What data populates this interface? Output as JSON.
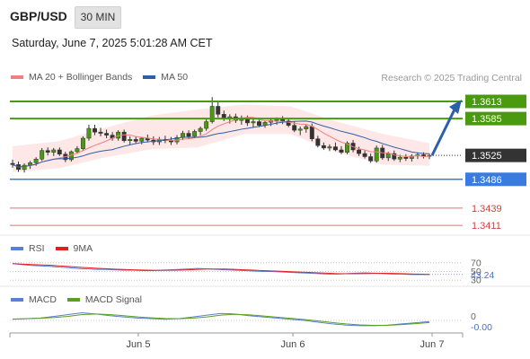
{
  "header": {
    "symbol": "GBP/USD",
    "timeframe": "30 MIN",
    "datetime": "Saturday, June 7, 2025 5:01:28 AM CET",
    "research": "Research © 2025 Trading Central"
  },
  "legend": {
    "ma20_bb": {
      "label": "MA 20 + Bollinger Bands",
      "color": "#f08080"
    },
    "ma50": {
      "label": "MA 50",
      "color": "#2d5fa8"
    }
  },
  "rsi_legend": {
    "rsi": {
      "label": "RSI",
      "color": "#5a7fd8"
    },
    "ma9": {
      "label": "9MA",
      "color": "#e02020"
    }
  },
  "macd_legend": {
    "macd": {
      "label": "MACD",
      "color": "#5a7fd8"
    },
    "signal": {
      "label": "MACD Signal",
      "color": "#5aa020"
    }
  },
  "chart_data": {
    "type": "candlestick",
    "price_ylim": [
      1.3395,
      1.3632
    ],
    "x_ticks": [
      "Jun 5",
      "Jun 6",
      "Jun 7"
    ],
    "levels": [
      {
        "label": "1.3613",
        "value": 1.3613,
        "kind": "resistance",
        "color": "#4a9a10"
      },
      {
        "label": "1.3585",
        "value": 1.3585,
        "kind": "resistance",
        "color": "#4a9a10"
      },
      {
        "label": "1.3525",
        "value": 1.3525,
        "kind": "last",
        "color": "#333333"
      },
      {
        "label": "1.3486",
        "value": 1.3486,
        "kind": "pivot",
        "color": "#3a7be0"
      },
      {
        "label": "1.3439",
        "value": 1.3439,
        "kind": "support",
        "color": "#e07070"
      },
      {
        "label": "1.3411",
        "value": 1.3411,
        "kind": "support",
        "color": "#e07070"
      }
    ],
    "target_arrow": {
      "from": 1.3525,
      "to": 1.3613,
      "color": "#2d5fa8"
    },
    "candles": [
      [
        1.3512,
        1.3518,
        1.3505,
        1.351
      ],
      [
        1.351,
        1.3515,
        1.3498,
        1.3502
      ],
      [
        1.3502,
        1.3512,
        1.3497,
        1.3509
      ],
      [
        1.3509,
        1.3516,
        1.3503,
        1.3513
      ],
      [
        1.3513,
        1.3522,
        1.3508,
        1.3519
      ],
      [
        1.3519,
        1.3537,
        1.3516,
        1.3533
      ],
      [
        1.3533,
        1.3538,
        1.3525,
        1.353
      ],
      [
        1.353,
        1.3537,
        1.3524,
        1.3534
      ],
      [
        1.3534,
        1.3538,
        1.3524,
        1.3527
      ],
      [
        1.3527,
        1.3531,
        1.3514,
        1.3518
      ],
      [
        1.3518,
        1.3533,
        1.3515,
        1.3531
      ],
      [
        1.3531,
        1.354,
        1.3528,
        1.3536
      ],
      [
        1.3536,
        1.3556,
        1.3533,
        1.3553
      ],
      [
        1.3553,
        1.3575,
        1.3549,
        1.3569
      ],
      [
        1.3569,
        1.3575,
        1.3558,
        1.3563
      ],
      [
        1.3563,
        1.357,
        1.3556,
        1.3561
      ],
      [
        1.3561,
        1.3567,
        1.3553,
        1.3558
      ],
      [
        1.3558,
        1.3563,
        1.3549,
        1.3553
      ],
      [
        1.3553,
        1.3566,
        1.3549,
        1.3563
      ],
      [
        1.3563,
        1.3567,
        1.3546,
        1.3549
      ],
      [
        1.3549,
        1.3556,
        1.3542,
        1.3551
      ],
      [
        1.3551,
        1.3556,
        1.3545,
        1.3548
      ],
      [
        1.3548,
        1.3555,
        1.3543,
        1.3553
      ],
      [
        1.3553,
        1.3559,
        1.3546,
        1.355
      ],
      [
        1.355,
        1.3556,
        1.3542,
        1.3547
      ],
      [
        1.3547,
        1.3555,
        1.3542,
        1.3551
      ],
      [
        1.3551,
        1.3557,
        1.3545,
        1.3549
      ],
      [
        1.3549,
        1.3555,
        1.3542,
        1.3547
      ],
      [
        1.3547,
        1.3558,
        1.3543,
        1.3554
      ],
      [
        1.3554,
        1.3565,
        1.355,
        1.3561
      ],
      [
        1.3561,
        1.3566,
        1.3552,
        1.3556
      ],
      [
        1.3556,
        1.3567,
        1.3553,
        1.3564
      ],
      [
        1.3564,
        1.3572,
        1.3558,
        1.3569
      ],
      [
        1.3569,
        1.3584,
        1.3565,
        1.358
      ],
      [
        1.358,
        1.362,
        1.3577,
        1.3605
      ],
      [
        1.3605,
        1.3612,
        1.3587,
        1.3592
      ],
      [
        1.3592,
        1.3598,
        1.3581,
        1.3585
      ],
      [
        1.3585,
        1.3592,
        1.3577,
        1.3588
      ],
      [
        1.3588,
        1.3593,
        1.3578,
        1.3582
      ],
      [
        1.3582,
        1.359,
        1.3575,
        1.3586
      ],
      [
        1.3586,
        1.359,
        1.3573,
        1.3578
      ],
      [
        1.3578,
        1.3584,
        1.357,
        1.358
      ],
      [
        1.358,
        1.3585,
        1.3571,
        1.3574
      ],
      [
        1.3574,
        1.3582,
        1.357,
        1.3579
      ],
      [
        1.3579,
        1.3585,
        1.3573,
        1.3582
      ],
      [
        1.3582,
        1.3587,
        1.3575,
        1.3584
      ],
      [
        1.3584,
        1.3589,
        1.3576,
        1.3581
      ],
      [
        1.3581,
        1.3586,
        1.3571,
        1.3574
      ],
      [
        1.3574,
        1.358,
        1.3563,
        1.3566
      ],
      [
        1.3566,
        1.3572,
        1.3558,
        1.3568
      ],
      [
        1.3568,
        1.3576,
        1.3562,
        1.3572
      ],
      [
        1.3572,
        1.3577,
        1.3548,
        1.3552
      ],
      [
        1.3552,
        1.3557,
        1.3538,
        1.3541
      ],
      [
        1.3541,
        1.3546,
        1.3534,
        1.3537
      ],
      [
        1.3537,
        1.3543,
        1.3532,
        1.3539
      ],
      [
        1.3539,
        1.3546,
        1.3532,
        1.3534
      ],
      [
        1.3534,
        1.354,
        1.3527,
        1.353
      ],
      [
        1.353,
        1.3548,
        1.3527,
        1.3545
      ],
      [
        1.3545,
        1.355,
        1.353,
        1.3534
      ],
      [
        1.3534,
        1.3539,
        1.3524,
        1.3528
      ],
      [
        1.3528,
        1.3533,
        1.352,
        1.3523
      ],
      [
        1.3523,
        1.3528,
        1.3513,
        1.3516
      ],
      [
        1.3516,
        1.3541,
        1.3513,
        1.3537
      ],
      [
        1.3537,
        1.3542,
        1.3518,
        1.3521
      ],
      [
        1.3521,
        1.3531,
        1.3516,
        1.3528
      ],
      [
        1.3528,
        1.3533,
        1.3516,
        1.3519
      ],
      [
        1.3519,
        1.3526,
        1.3514,
        1.3522
      ],
      [
        1.3522,
        1.3527,
        1.3516,
        1.352
      ],
      [
        1.352,
        1.3527,
        1.3515,
        1.3524
      ],
      [
        1.3524,
        1.353,
        1.3519,
        1.3526
      ],
      [
        1.3526,
        1.353,
        1.352,
        1.3524
      ],
      [
        1.3524,
        1.3528,
        1.3519,
        1.3525
      ]
    ],
    "bollinger_band": {
      "upper": [
        1.354,
        1.3548,
        1.357,
        1.359,
        1.36,
        1.3608,
        1.3605,
        1.358,
        1.356,
        1.3545
      ],
      "lower": [
        1.3498,
        1.3504,
        1.3522,
        1.3535,
        1.3538,
        1.356,
        1.356,
        1.353,
        1.351,
        1.3508
      ]
    },
    "rsi": {
      "levels": [
        70,
        50,
        30
      ],
      "last_value_label": "43.24",
      "ylim": [
        20,
        80
      ],
      "values": [
        68,
        66,
        64,
        63,
        62,
        60,
        59,
        57,
        56,
        55,
        55,
        54,
        53,
        53,
        52,
        52,
        53,
        54,
        55,
        56,
        57,
        56,
        55,
        54,
        53,
        52,
        51,
        50,
        50,
        49,
        48,
        47,
        46,
        45,
        44,
        44,
        45,
        46,
        47,
        46,
        45,
        44,
        44,
        43,
        43,
        43
      ]
    },
    "macd": {
      "zero_label": "0",
      "last_value_label": "-0.00",
      "ylim": [
        -1.0,
        1.0
      ],
      "values": [
        0.1,
        0.15,
        0.2,
        0.35,
        0.5,
        0.65,
        0.55,
        0.4,
        0.3,
        0.2,
        0.15,
        0.1,
        0.15,
        0.3,
        0.45,
        0.6,
        0.55,
        0.4,
        0.3,
        0.2,
        0.1,
        0.0,
        -0.15,
        -0.3,
        -0.4,
        -0.45,
        -0.45,
        -0.4,
        -0.3,
        -0.2,
        -0.1
      ],
      "signal": [
        0.12,
        0.14,
        0.18,
        0.25,
        0.35,
        0.5,
        0.55,
        0.5,
        0.4,
        0.3,
        0.22,
        0.16,
        0.14,
        0.2,
        0.3,
        0.45,
        0.52,
        0.48,
        0.38,
        0.28,
        0.18,
        0.08,
        -0.05,
        -0.18,
        -0.3,
        -0.38,
        -0.42,
        -0.42,
        -0.36,
        -0.28,
        -0.18
      ]
    }
  }
}
